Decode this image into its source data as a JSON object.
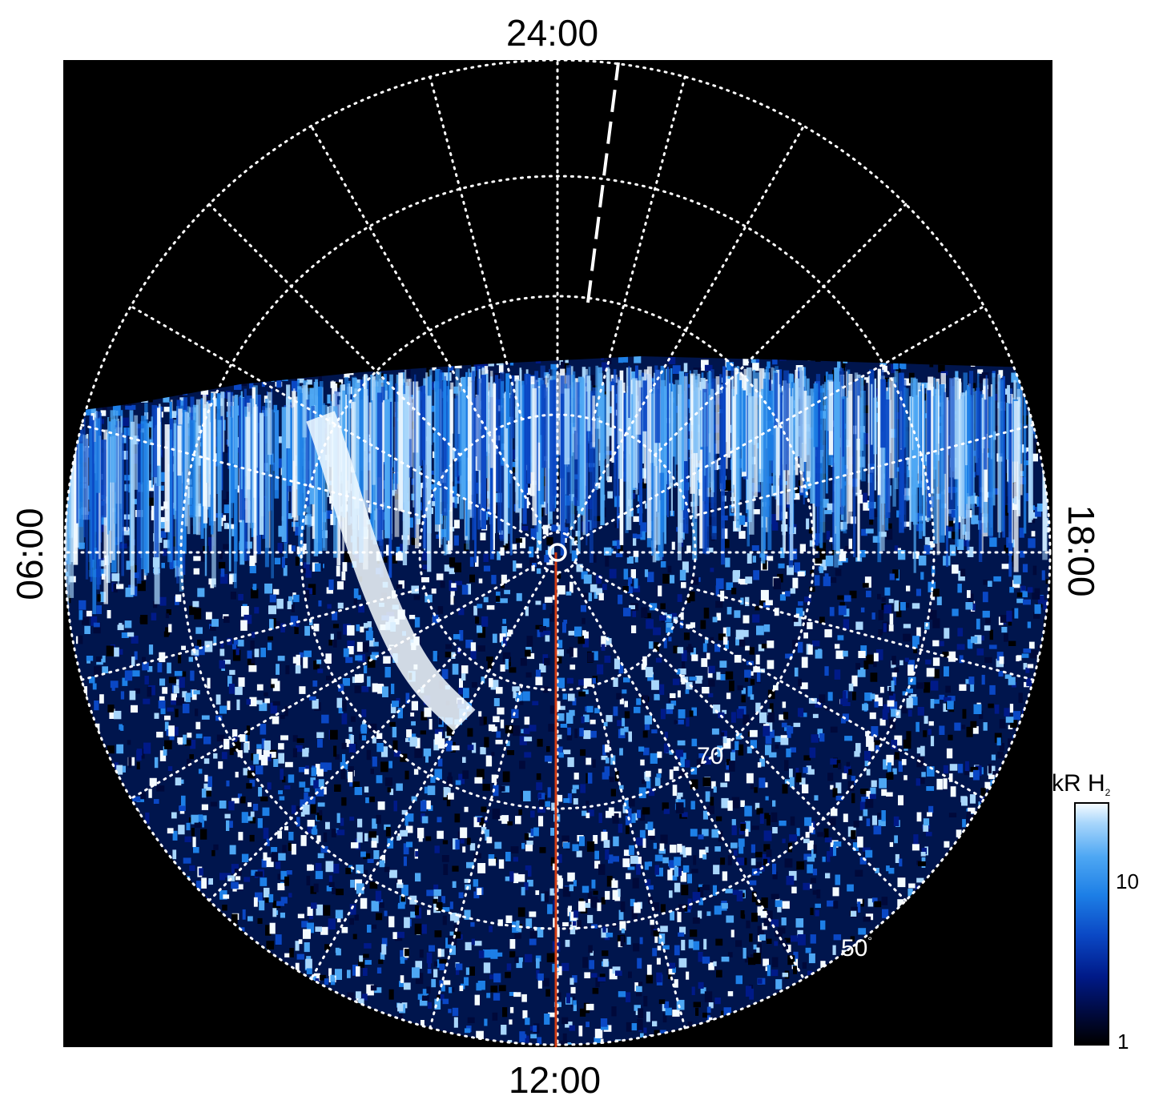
{
  "local_time_labels": {
    "top": "24:00",
    "bottom": "12:00",
    "left": "06:00",
    "right": "18:00"
  },
  "latitude_labels": {
    "lat_70": "70",
    "lat_50": "50",
    "degree_symbol": "°"
  },
  "colorbar": {
    "unit": "kR H",
    "unit_subscript": "2",
    "ticks": [
      "10",
      "1"
    ],
    "scale": "log",
    "range": [
      1,
      30
    ]
  },
  "colors": {
    "background": "#000000",
    "aurora_dark": "#00093a",
    "aurora_mid": "#1d7fe6",
    "aurora_bright": "#f4fbff",
    "grid": "#ffffff",
    "meridian": "#d23c14"
  },
  "icons": [
    "pole-marker-icon"
  ]
}
